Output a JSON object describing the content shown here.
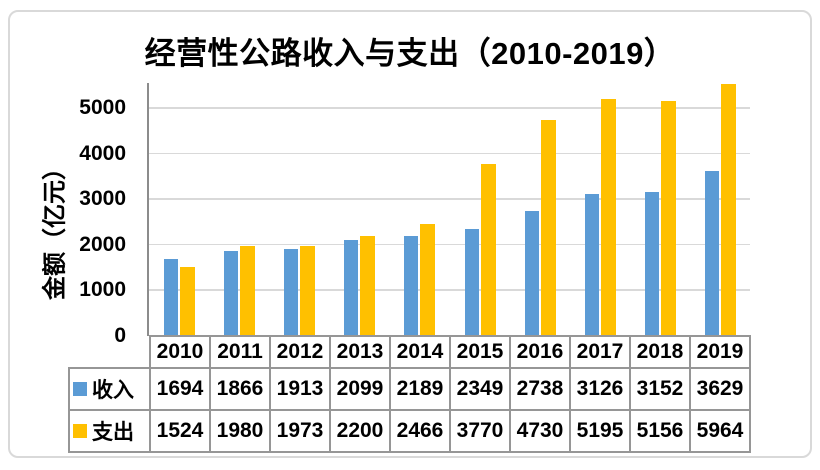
{
  "chart_data": {
    "type": "bar",
    "title": "经营性公路收入与支出（2010-2019）",
    "ylabel": "金额（亿元）",
    "xlabel": "",
    "categories": [
      "2010",
      "2011",
      "2012",
      "2013",
      "2014",
      "2015",
      "2016",
      "2017",
      "2018",
      "2019"
    ],
    "series": [
      {
        "name": "收入",
        "color": "#5B9BD5",
        "values": [
          1694,
          1866,
          1913,
          2099,
          2189,
          2349,
          2738,
          3126,
          3152,
          3629
        ]
      },
      {
        "name": "支出",
        "color": "#FFC000",
        "values": [
          1524,
          1980,
          1973,
          2200,
          2466,
          3770,
          4730,
          5195,
          5156,
          5964
        ]
      }
    ],
    "ytick_labels": [
      "0",
      "1000",
      "2000",
      "3000",
      "4000",
      "5000"
    ],
    "ytick_interval": 1000,
    "ylim": [
      0,
      5530
    ],
    "grid": true,
    "legend_position": "data-table-row-labels",
    "data_table_shown": true
  },
  "colors": {
    "income_bar": "#5B9BD5",
    "expense_bar": "#FFC000",
    "gridline": "#D9D9D9",
    "axis_line": "#8C8C8C",
    "table_border": "#969696",
    "card_border": "#D9D9D9",
    "text": "#000000",
    "background": "#FFFFFF"
  }
}
